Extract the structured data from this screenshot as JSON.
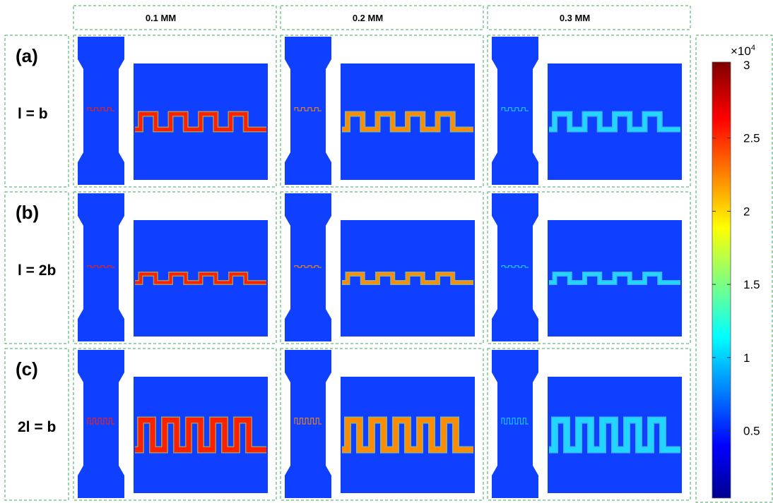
{
  "columns": [
    "0.1 MM",
    "0.2 MM",
    "0.3 MM"
  ],
  "rows": [
    {
      "panel": "(a)",
      "condition": "l = b"
    },
    {
      "panel": "(b)",
      "condition": "l = 2b"
    },
    {
      "panel": "(c)",
      "condition": "2l = b"
    }
  ],
  "colorbar": {
    "multiplier": "×10",
    "exponent": "4",
    "lim": [
      0.04,
      3
    ],
    "ticks": [
      0.5,
      1,
      1.5,
      2,
      2.5,
      3
    ]
  }
}
